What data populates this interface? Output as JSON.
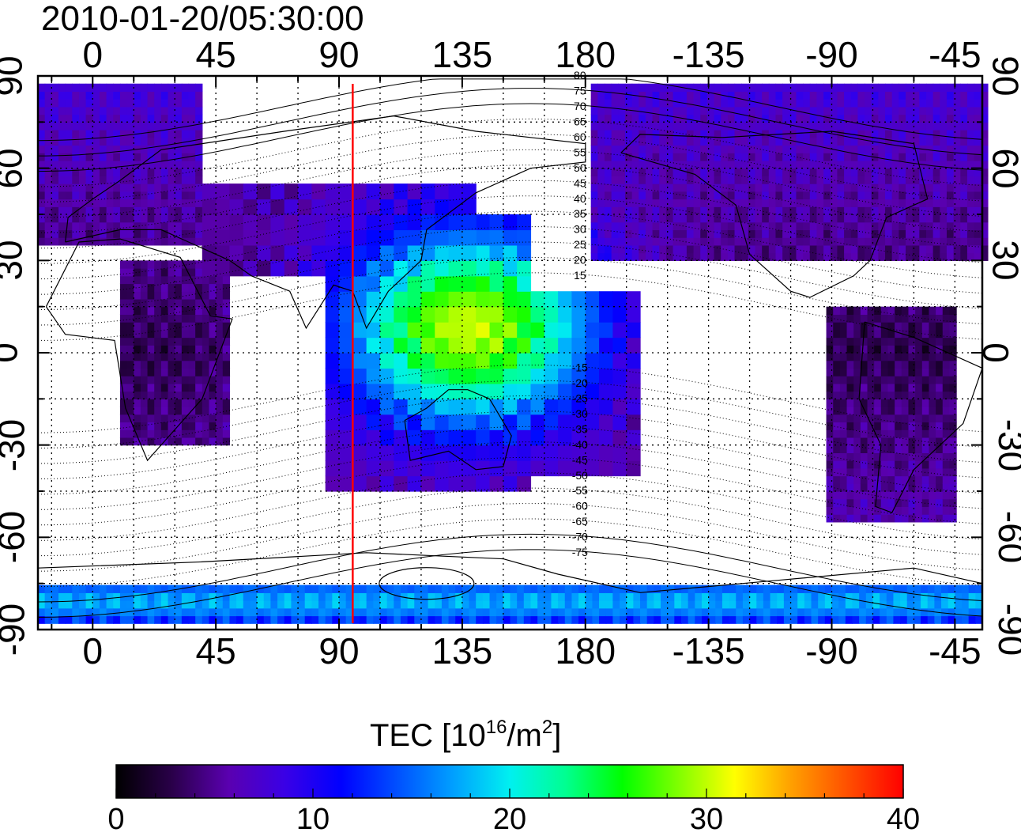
{
  "title": "2010-01-20/05:30:00",
  "colorbar": {
    "title_prefix": "TEC  [10",
    "title_exp1": "16",
    "title_mid": "/m",
    "title_exp2": "2",
    "title_suffix": "]",
    "ticks": [
      "0",
      "10",
      "20",
      "30",
      "40"
    ],
    "range": [
      0,
      40
    ],
    "colors": [
      "#000000",
      "#2a004a",
      "#5a00b0",
      "#3a00e6",
      "#0000ff",
      "#0050ff",
      "#00a0ff",
      "#00f0f0",
      "#00ff90",
      "#00ff00",
      "#80ff00",
      "#ffff00",
      "#ffa000",
      "#ff5000",
      "#ff0000"
    ]
  },
  "map": {
    "lon_top_ticks": [
      "0",
      "45",
      "90",
      "135",
      "180",
      "-135",
      "-90",
      "-45"
    ],
    "lon_bottom_ticks": [
      "0",
      "45",
      "90",
      "135",
      "180",
      "-135",
      "-90",
      "-45"
    ],
    "lat_left_ticks": [
      "90",
      "60",
      "30",
      "0",
      "-30",
      "-60",
      "-90"
    ],
    "lat_right_ticks": [
      "90",
      "60",
      "30",
      "0",
      "-30",
      "-60",
      "-90"
    ],
    "lon_range": [
      -20,
      325
    ],
    "lat_range": [
      -90,
      90
    ],
    "grid": "dotted",
    "meridian_line_lon": 95,
    "meridian_line_color": "#ff0000",
    "contour_labels": [
      "80",
      "75",
      "70",
      "65",
      "60",
      "55",
      "50",
      "45",
      "40",
      "35",
      "30",
      "25",
      "20",
      "15",
      "-15",
      "-20",
      "-25",
      "-30",
      "-35",
      "-40",
      "-45",
      "-50",
      "-55",
      "-60",
      "-65",
      "-70",
      "-75"
    ]
  }
}
